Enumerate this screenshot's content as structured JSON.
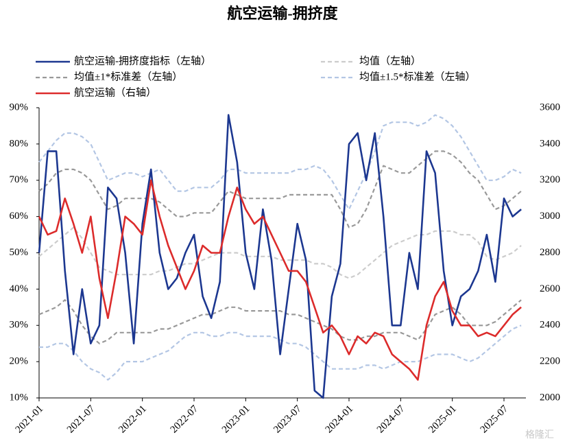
{
  "chart_data": {
    "type": "line",
    "title": "航空运输-拥挤度",
    "watermark": "格隆汇",
    "categories": [
      "2021-01",
      null,
      null,
      null,
      null,
      null,
      "2021-07",
      null,
      null,
      null,
      null,
      null,
      "2022-01",
      null,
      null,
      null,
      null,
      null,
      "2022-07",
      null,
      null,
      null,
      null,
      null,
      "2023-01",
      null,
      null,
      null,
      null,
      null,
      "2023-07",
      null,
      null,
      null,
      null,
      null,
      "2024-01",
      null,
      null,
      null,
      null,
      null,
      "2024-07",
      null,
      null,
      null,
      null,
      null,
      "2025-01",
      null,
      null,
      null,
      null,
      null,
      "2025-07",
      null,
      null
    ],
    "ylim": [
      10,
      90
    ],
    "yticks": [
      {
        "value": 10,
        "label": "10%"
      },
      {
        "value": 20,
        "label": "20%"
      },
      {
        "value": 30,
        "label": "30%"
      },
      {
        "value": 40,
        "label": "40%"
      },
      {
        "value": 50,
        "label": "50%"
      },
      {
        "value": 60,
        "label": "60%"
      },
      {
        "value": 70,
        "label": "70%"
      },
      {
        "value": 80,
        "label": "80%"
      },
      {
        "value": 90,
        "label": "90%"
      }
    ],
    "y2lim": [
      2000,
      3600
    ],
    "y2ticks": [
      2000,
      2200,
      2400,
      2600,
      2800,
      3000,
      3200,
      3400,
      3600
    ],
    "grid": false,
    "legend": "top",
    "series": [
      {
        "name": "航空运输-拥挤度指标（左轴）",
        "color": "#1c3790",
        "dash": "solid",
        "values": [
          50,
          78,
          78,
          45,
          22,
          40,
          25,
          30,
          68,
          65,
          50,
          25,
          58,
          73,
          50,
          40,
          43,
          50,
          55,
          38,
          32,
          42,
          88,
          75,
          50,
          40,
          62,
          48,
          22,
          40,
          58,
          48,
          12,
          10,
          38,
          47,
          80,
          83,
          70,
          83,
          60,
          30,
          30,
          50,
          40,
          78,
          72,
          45,
          30,
          38,
          40,
          45,
          55,
          42,
          65,
          60,
          62
        ]
      },
      {
        "name": "均值（左轴）",
        "color": "#cccccc",
        "dash": "dashed",
        "values": [
          49,
          51,
          53,
          55,
          57,
          54,
          50,
          46,
          45,
          44,
          44,
          44,
          44,
          44,
          45,
          45,
          46,
          47,
          47,
          48,
          49,
          50,
          50,
          50,
          49,
          49,
          49,
          49,
          48,
          48,
          48,
          48,
          47,
          47,
          46,
          44,
          43,
          44,
          46,
          48,
          50,
          52,
          53,
          54,
          55,
          55,
          56,
          56,
          56,
          55,
          55,
          53,
          49,
          48,
          49,
          50,
          52
        ]
      },
      {
        "name": "均值±1*标准差（左轴）",
        "color": "#999999",
        "dash": "dashed",
        "upper": [
          67,
          69,
          72,
          73,
          73,
          72,
          70,
          66,
          62,
          63,
          65,
          65,
          65,
          65,
          64,
          62,
          60,
          60,
          61,
          61,
          61,
          64,
          67,
          66,
          65,
          65,
          65,
          65,
          65,
          66,
          66,
          66,
          66,
          66,
          66,
          62,
          57,
          58,
          62,
          68,
          74,
          73,
          72,
          72,
          74,
          76,
          78,
          78,
          77,
          75,
          72,
          70,
          66,
          62,
          63,
          65,
          67
        ],
        "lower": [
          33,
          34,
          35,
          37,
          34,
          30,
          27,
          25,
          26,
          28,
          28,
          28,
          28,
          28,
          29,
          29,
          30,
          31,
          32,
          33,
          33,
          34,
          35,
          35,
          34,
          34,
          34,
          34,
          34,
          33,
          33,
          32,
          31,
          30,
          29,
          27,
          26,
          26,
          27,
          27,
          28,
          28,
          28,
          27,
          26,
          29,
          33,
          34,
          35,
          33,
          30,
          30,
          30,
          31,
          33,
          35,
          37
        ]
      },
      {
        "name": "均值±1.5*标准差（左轴）",
        "color": "#b3c6e4",
        "dash": "dashed",
        "upper": [
          75,
          78,
          81,
          83,
          83,
          82,
          80,
          75,
          70,
          71,
          72,
          72,
          71,
          72,
          73,
          70,
          67,
          67,
          68,
          68,
          68,
          70,
          73,
          73,
          72,
          72,
          72,
          72,
          72,
          72,
          73,
          73,
          74,
          73,
          70,
          66,
          62,
          67,
          72,
          78,
          85,
          86,
          86,
          86,
          85,
          86,
          88,
          87,
          85,
          82,
          78,
          74,
          70,
          70,
          71,
          73,
          72
        ],
        "lower": [
          24,
          24,
          25,
          25,
          23,
          20,
          18,
          17,
          15,
          17,
          20,
          20,
          20,
          21,
          22,
          23,
          25,
          27,
          28,
          28,
          27,
          27,
          28,
          28,
          27,
          27,
          27,
          27,
          26,
          25,
          25,
          24,
          22,
          20,
          18,
          18,
          18,
          18,
          19,
          19,
          18,
          19,
          20,
          20,
          20,
          21,
          22,
          22,
          22,
          21,
          20,
          21,
          23,
          25,
          27,
          29,
          30
        ]
      },
      {
        "name": "航空运输（右轴）",
        "color": "#dc2b2b",
        "dash": "solid",
        "axis": "y2",
        "values": [
          3000,
          2900,
          2920,
          3100,
          2960,
          2800,
          3000,
          2660,
          2440,
          2700,
          3000,
          2960,
          2900,
          3200,
          3000,
          2840,
          2720,
          2600,
          2700,
          2840,
          2800,
          2800,
          3000,
          3160,
          3040,
          2960,
          3000,
          2900,
          2800,
          2700,
          2700,
          2640,
          2500,
          2360,
          2400,
          2340,
          2240,
          2340,
          2300,
          2360,
          2340,
          2240,
          2200,
          2160,
          2100,
          2400,
          2560,
          2640,
          2480,
          2400,
          2400,
          2340,
          2360,
          2340,
          2400,
          2460,
          2500
        ]
      }
    ]
  }
}
